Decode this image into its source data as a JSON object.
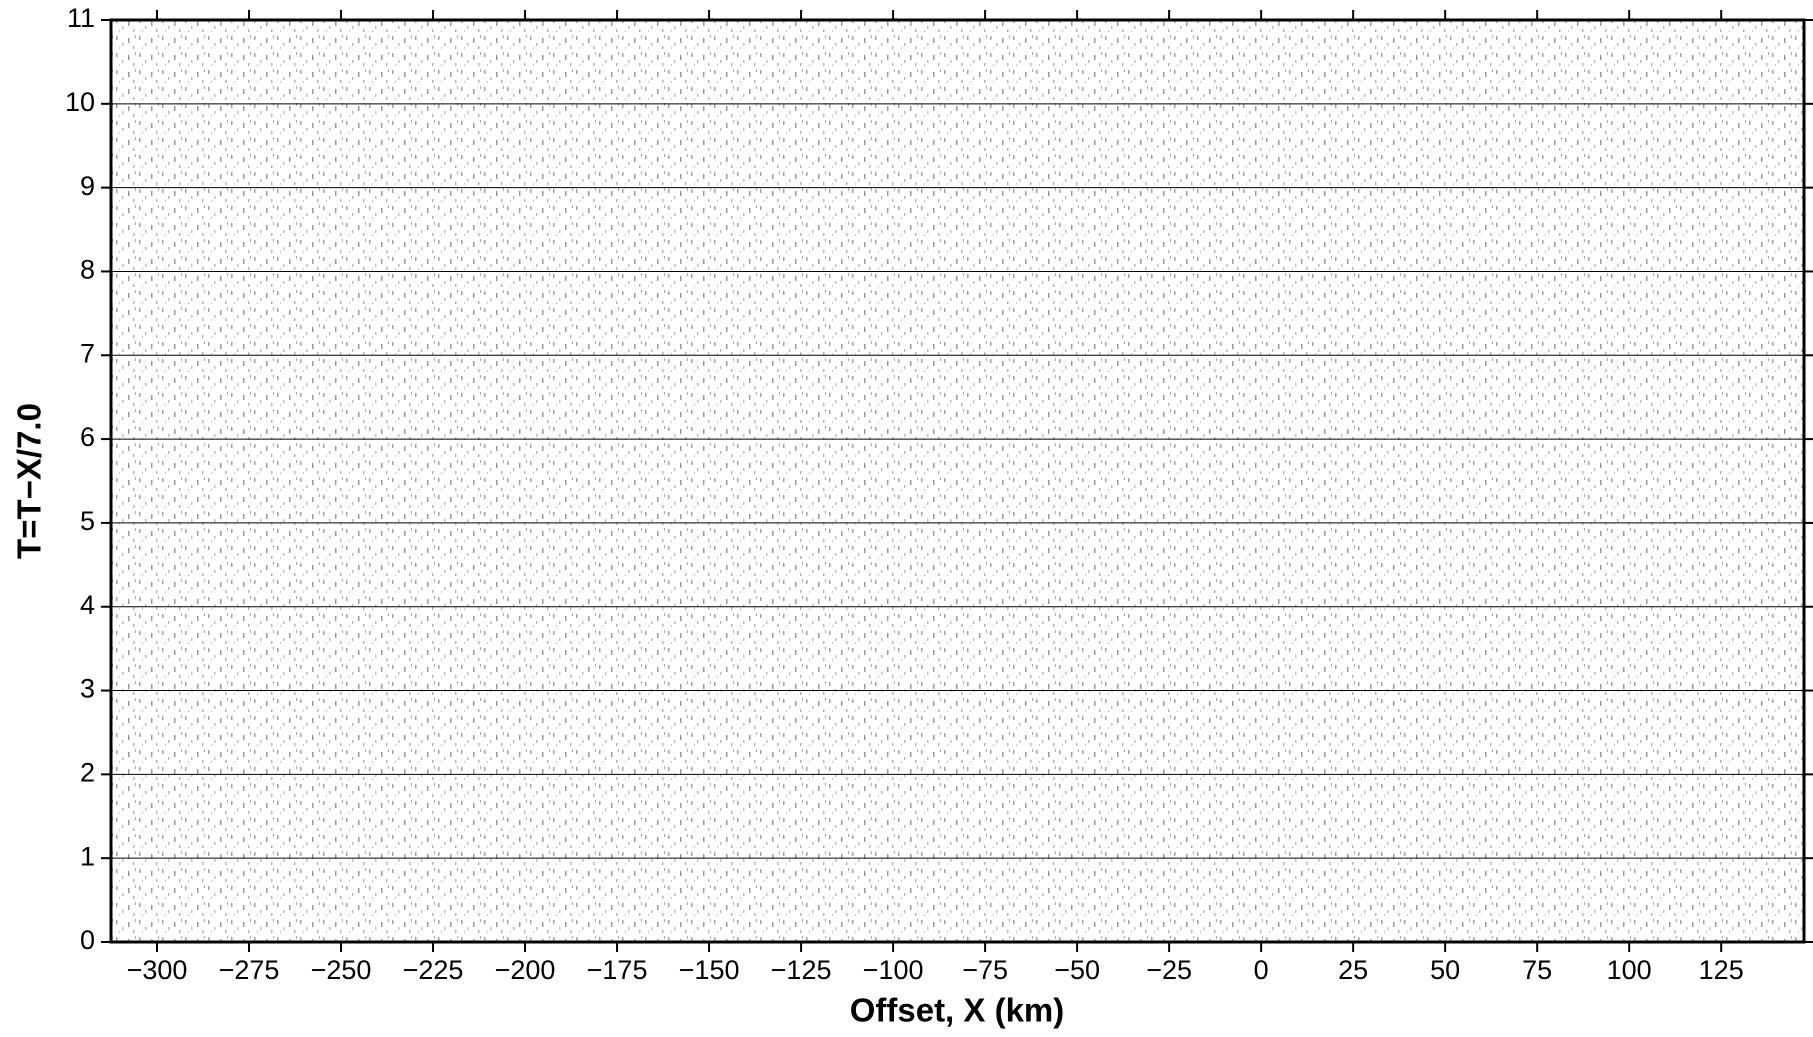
{
  "chart_data": {
    "type": "record-section",
    "xlabel": "Offset, X (km)",
    "ylabel": "T=T−X/7.0",
    "xlim": [
      -312.5,
      147.5
    ],
    "ylim": [
      0,
      11
    ],
    "xticks": [
      {
        "value": -300,
        "label": "−300"
      },
      {
        "value": -275,
        "label": "−275"
      },
      {
        "value": -250,
        "label": "−250"
      },
      {
        "value": -225,
        "label": "−225"
      },
      {
        "value": -200,
        "label": "−200"
      },
      {
        "value": -175,
        "label": "−175"
      },
      {
        "value": -150,
        "label": "−150"
      },
      {
        "value": -125,
        "label": "−125"
      },
      {
        "value": -100,
        "label": "−100"
      },
      {
        "value": -75,
        "label": "−75"
      },
      {
        "value": -50,
        "label": "−50"
      },
      {
        "value": -25,
        "label": "−25"
      },
      0,
      25,
      50,
      75,
      100,
      125
    ],
    "yticks": [
      0,
      1,
      2,
      3,
      4,
      5,
      6,
      7,
      8,
      9,
      10,
      11
    ],
    "grid": true,
    "color": "#000000"
  }
}
